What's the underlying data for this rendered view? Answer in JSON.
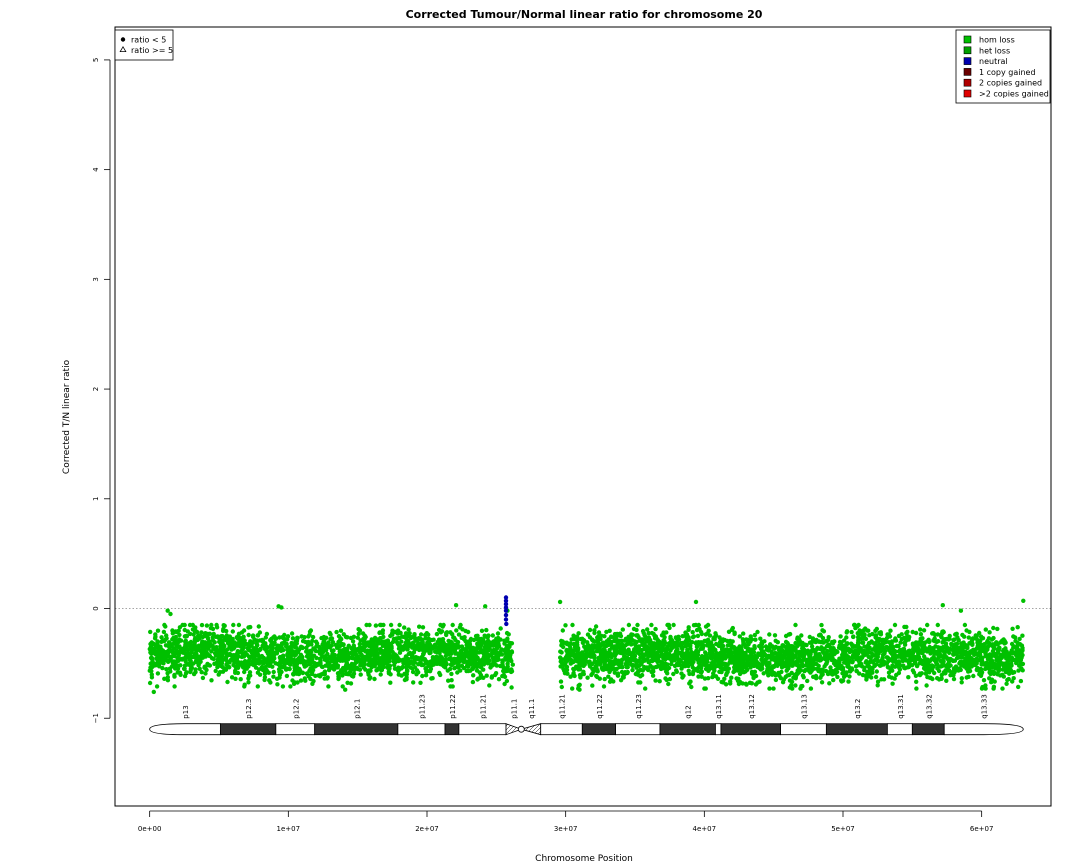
{
  "chart_data": {
    "type": "scatter",
    "title": "Corrected Tumour/Normal linear ratio for chromosome  20",
    "xlabel": "Chromosome Position",
    "ylabel": "Corrected T/N linear ratio",
    "xlim": [
      -2500000,
      65000000
    ],
    "ylim": [
      -1.8,
      5.3
    ],
    "x_ticks": [
      0,
      10000000,
      20000000,
      30000000,
      40000000,
      50000000,
      60000000
    ],
    "x_tick_labels": [
      "0e+00",
      "1e+07",
      "2e+07",
      "3e+07",
      "4e+07",
      "5e+07",
      "6e+07"
    ],
    "y_ticks": [
      -1,
      0,
      1,
      2,
      3,
      4,
      5
    ],
    "y_tick_labels": [
      "−1",
      "0",
      "1",
      "2",
      "3",
      "4",
      "5"
    ],
    "reference_line": {
      "y": 0,
      "style": "dotted",
      "color": "#888888"
    },
    "shape_legend": {
      "placement": "top-left",
      "entries": [
        {
          "label": "ratio < 5",
          "marker": "filled-circle"
        },
        {
          "label": "ratio >= 5",
          "marker": "open-triangle"
        }
      ]
    },
    "color_legend": {
      "placement": "top-right",
      "entries": [
        {
          "label": "hom loss",
          "color": "#00c000"
        },
        {
          "label": "het loss",
          "color": "#00a000"
        },
        {
          "label": "neutral",
          "color": "#0000b0"
        },
        {
          "label": "1 copy gained",
          "color": "#6a0000"
        },
        {
          "label": "2 copies gained",
          "color": "#b00000"
        },
        {
          "label": ">2 copies gained",
          "color": "#e00000"
        }
      ]
    },
    "series": [
      {
        "category": "het loss",
        "color": "#00c000",
        "segments": [
          {
            "x_start": 0,
            "x_end": 26200000,
            "median": -0.42,
            "band_low": -0.66,
            "band_high": -0.2
          },
          {
            "x_start": 29600000,
            "x_end": 63000000,
            "median": -0.43,
            "band_low": -0.68,
            "band_high": -0.2
          }
        ],
        "outliers": [
          [
            1300000,
            -0.02
          ],
          [
            1500000,
            -0.05
          ],
          [
            9300000,
            0.02
          ],
          [
            9500000,
            0.01
          ],
          [
            22100000,
            0.03
          ],
          [
            24200000,
            0.02
          ],
          [
            29600000,
            0.06
          ],
          [
            39400000,
            0.06
          ],
          [
            57200000,
            0.03
          ],
          [
            58500000,
            -0.02
          ],
          [
            63000000,
            0.07
          ],
          [
            25800000,
            -0.02
          ],
          [
            300000,
            -0.76
          ],
          [
            14100000,
            -0.74
          ],
          [
            31000000,
            -0.74
          ],
          [
            40100000,
            -0.73
          ],
          [
            52500000,
            -0.7
          ],
          [
            26100000,
            -0.72
          ]
        ]
      },
      {
        "category": "neutral",
        "color": "#0000b0",
        "points": [
          [
            25700000,
            0.1
          ],
          [
            25700000,
            0.07
          ],
          [
            25700000,
            0.04
          ],
          [
            25700000,
            0.01
          ],
          [
            25700000,
            -0.02
          ],
          [
            25700000,
            -0.06
          ],
          [
            25700000,
            -0.1
          ],
          [
            25720000,
            -0.14
          ]
        ]
      }
    ],
    "ideogram": {
      "y_level": -1.1,
      "centromere": 26800000,
      "bands": [
        {
          "name": "p13",
          "start": 0,
          "end": 5100000,
          "stain": "gneg"
        },
        {
          "name": "p12.3",
          "start": 5100000,
          "end": 9100000,
          "stain": "gpos"
        },
        {
          "name": "p12.2",
          "start": 9100000,
          "end": 11900000,
          "stain": "gneg"
        },
        {
          "name": "p12.1",
          "start": 11900000,
          "end": 17900000,
          "stain": "gpos"
        },
        {
          "name": "p11.23",
          "start": 17900000,
          "end": 21300000,
          "stain": "gneg"
        },
        {
          "name": "p11.22",
          "start": 21300000,
          "end": 22300000,
          "stain": "gpos"
        },
        {
          "name": "p11.21",
          "start": 22300000,
          "end": 25700000,
          "stain": "gneg"
        },
        {
          "name": "p11.1",
          "start": 25700000,
          "end": 26800000,
          "stain": "acen"
        },
        {
          "name": "q11.1",
          "start": 26800000,
          "end": 28200000,
          "stain": "acen"
        },
        {
          "name": "q11.21",
          "start": 28200000,
          "end": 31200000,
          "stain": "gneg"
        },
        {
          "name": "q11.22",
          "start": 31200000,
          "end": 33600000,
          "stain": "gpos"
        },
        {
          "name": "q11.23",
          "start": 33600000,
          "end": 36800000,
          "stain": "gneg"
        },
        {
          "name": "q12",
          "start": 36800000,
          "end": 40800000,
          "stain": "gpos"
        },
        {
          "name": "q13.11",
          "start": 40800000,
          "end": 41200000,
          "stain": "gneg"
        },
        {
          "name": "q13.12",
          "start": 41200000,
          "end": 45500000,
          "stain": "gpos"
        },
        {
          "name": "q13.13",
          "start": 45500000,
          "end": 48800000,
          "stain": "gneg"
        },
        {
          "name": "q13.2",
          "start": 48800000,
          "end": 53200000,
          "stain": "gpos"
        },
        {
          "name": "q13.31",
          "start": 53200000,
          "end": 55000000,
          "stain": "gneg"
        },
        {
          "name": "q13.32",
          "start": 55000000,
          "end": 57300000,
          "stain": "gpos"
        },
        {
          "name": "q13.33",
          "start": 57300000,
          "end": 63000000,
          "stain": "gneg"
        }
      ]
    }
  }
}
